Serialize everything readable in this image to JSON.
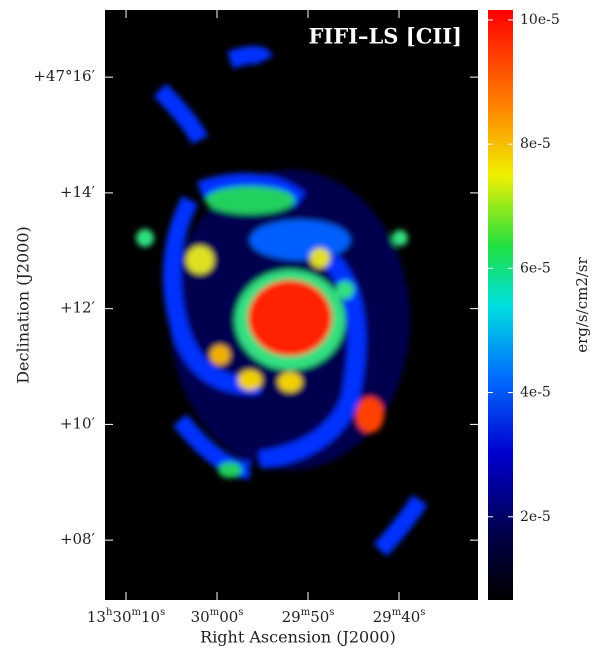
{
  "chart_data": {
    "type": "image",
    "title": "FIFI–LS [CII]",
    "x_label": "Right Ascension (J2000)",
    "y_label": "Declination (J2000)",
    "colorbar_label": "erg/s/cm2/sr",
    "xlim": [
      202.5513,
      202.3805
    ],
    "xticks": [
      {
        "value": 202.541667,
        "label": "13h30m10s"
      },
      {
        "value": 202.5,
        "label": "30m00s"
      },
      {
        "value": 202.458333,
        "label": "29m50s"
      },
      {
        "value": 202.416667,
        "label": "29m40s"
      }
    ],
    "ylim": [
      47.1161,
      47.286
    ],
    "yticks": [
      {
        "value": 47.266667,
        "label": "+47°16′"
      },
      {
        "value": 47.233333,
        "label": "+14′"
      },
      {
        "value": 47.2,
        "label": "+12′"
      },
      {
        "value": 47.166667,
        "label": "+10′"
      },
      {
        "value": 47.133333,
        "label": "+08′"
      }
    ],
    "clim": [
      6.6e-06,
      0.0001016
    ],
    "cticks": [
      {
        "value": 2e-05,
        "label": "2e-5"
      },
      {
        "value": 4e-05,
        "label": "4e-5"
      },
      {
        "value": 6e-05,
        "label": "6e-5"
      },
      {
        "value": 8e-05,
        "label": "8e-5"
      },
      {
        "value": 0.0001,
        "label": "10e-5"
      }
    ]
  }
}
